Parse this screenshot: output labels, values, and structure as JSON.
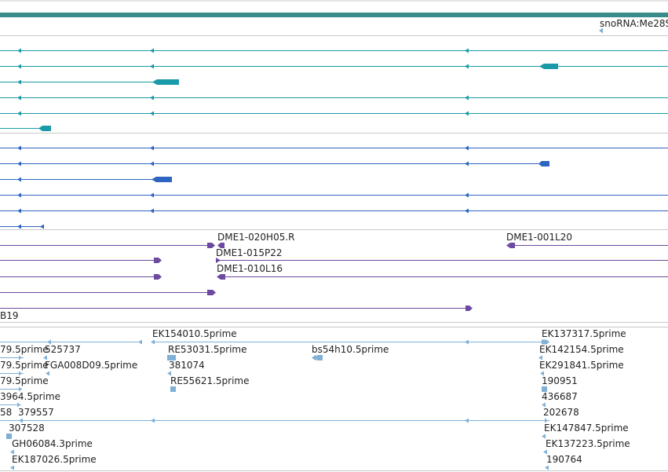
{
  "colors": {
    "top_bar": "#3a8c8c",
    "separator": "#c8c8c8",
    "teal": "#1a9aa8",
    "blue": "#2f64c0",
    "purple": "#6b4aa0",
    "lightblue": "#7fb0d6",
    "text": "#222222"
  },
  "labels": {
    "snorna": "snoRNA:Me28S",
    "dme_a": "DME1-020H05.R",
    "dme_b": "DME1-001L20",
    "dme_c": "DME1-015P22",
    "dme_d": "DME1-010L16",
    "b19": "B19",
    "ek154010": "EK154010.5prime",
    "ek137317": "EK137317.5prime",
    "l_795_1": "79.5prime",
    "l_525737": "525737",
    "l_re53031": "RE53031.5prime",
    "l_bs54h10": "bs54h10.5prime",
    "l_ek142154": "EK142154.5prime",
    "l_795_2": "79.5prime",
    "l_fga": "FGA008D09.5prime",
    "l_381074": "381074",
    "l_ek291841": "EK291841.5prime",
    "l_795_3": "79.5prime",
    "l_re55621": "RE55621.5prime",
    "l_190951": "190951",
    "l_3964": "3964.5prime",
    "l_436687": "436687",
    "l_58": "58",
    "l_379557": "379557",
    "l_202678": "202678",
    "l_307528": "307528",
    "l_ek147847": "EK147847.5prime",
    "l_gh06084": "GH06084.3prime",
    "l_ek137223": "EK137223.5prime",
    "l_ek187026": "EK187026.5prime",
    "l_190764": "190764"
  }
}
